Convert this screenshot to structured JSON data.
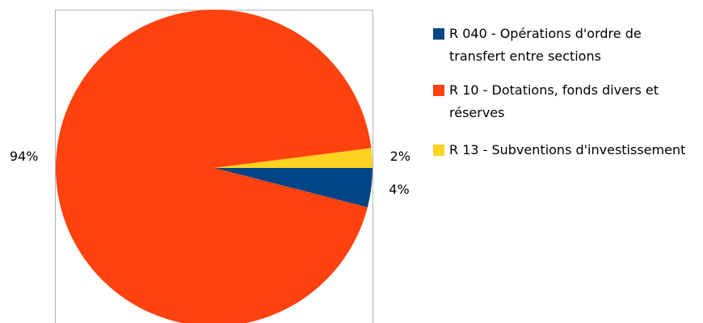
{
  "chart_data": {
    "type": "pie",
    "categories": [
      "R 040 - Opérations d'ordre de transfert entre sections",
      "R 10 - Dotations, fonds divers et réserves",
      "R 13 - Subventions d'investissement"
    ],
    "values": [
      4,
      94,
      2
    ],
    "value_labels": [
      "4%",
      "94%",
      "2%"
    ],
    "colors": [
      "#004586",
      "#ff420e",
      "#ffd320"
    ],
    "legend": "right"
  }
}
